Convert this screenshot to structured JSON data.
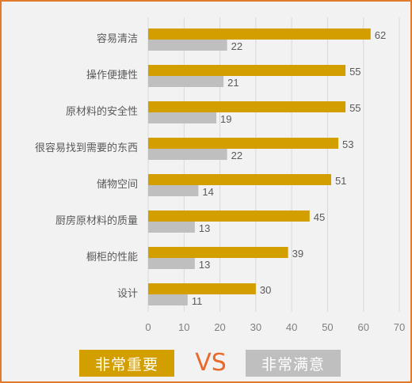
{
  "chart_data": {
    "type": "bar",
    "orientation": "horizontal",
    "categories": [
      "容易清洁",
      "操作便捷性",
      "原材料的安全性",
      "很容易找到需要的东西",
      "储物空间",
      "厨房原材料的质量",
      "橱柜的性能",
      "设计"
    ],
    "series": [
      {
        "name": "非常重要",
        "color": "#d29e00",
        "values": [
          62,
          55,
          55,
          53,
          51,
          45,
          39,
          30
        ]
      },
      {
        "name": "非常满意",
        "color": "#bfbfbf",
        "values": [
          22,
          21,
          19,
          22,
          14,
          13,
          13,
          11
        ]
      }
    ],
    "xlim": [
      0,
      70
    ],
    "xticks": [
      0,
      10,
      20,
      30,
      40,
      50,
      60,
      70
    ],
    "grid": true,
    "legend": {
      "position": "bottom",
      "separator": "VS"
    }
  }
}
